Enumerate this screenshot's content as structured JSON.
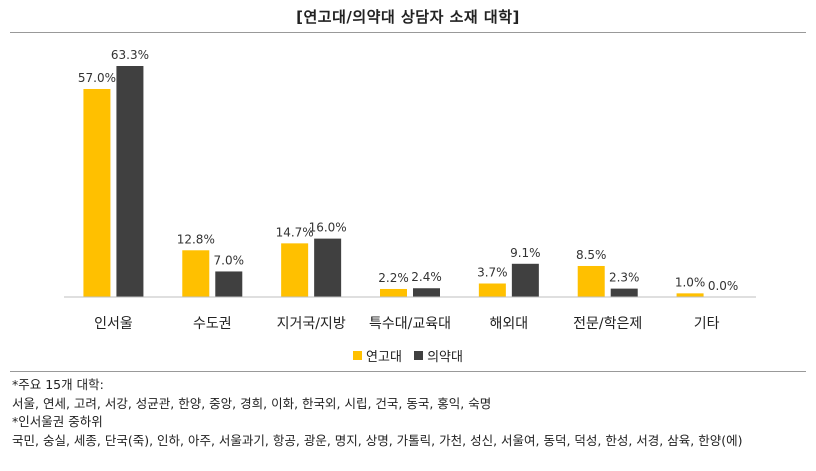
{
  "chart_data": {
    "type": "bar",
    "title": "[연고대/의약대 상담자 소재 대학]",
    "categories": [
      "인서울",
      "수도권",
      "지거국/지방",
      "특수대/교육대",
      "해외대",
      "전문/학은제",
      "기타"
    ],
    "series": [
      {
        "name": "연고대",
        "values": [
          57.0,
          12.8,
          14.7,
          2.2,
          3.7,
          8.5,
          1.0
        ],
        "labels": [
          "57.0%",
          "12.8%",
          "14.7%",
          "2.2%",
          "3.7%",
          "8.5%",
          "1.0%"
        ]
      },
      {
        "name": "의약대",
        "values": [
          63.3,
          7.0,
          16.0,
          2.4,
          9.1,
          2.3,
          0.0
        ],
        "labels": [
          "63.3%",
          "7.0%",
          "16.0%",
          "2.4%",
          "9.1%",
          "2.3%",
          "0.0%"
        ]
      }
    ],
    "colors": [
      "#FFC000",
      "#404040"
    ],
    "ylim": [
      0,
      63.3
    ],
    "legend_position": "bottom",
    "grid": false
  },
  "notes": [
    "*주요 15개 대학:",
    "서울, 연세, 고려, 서강, 성균관, 한양, 중앙, 경희, 이화, 한국외, 시립, 건국, 동국, 홍익, 숙명",
    "*인서울권 중하위",
    "국민, 숭실, 세종, 단국(죽), 인하, 아주, 서울과기, 항공, 광운, 명지, 상명, 가톨릭, 가천, 성신, 서울여, 동덕, 덕성, 한성, 서경, 삼육, 한양(에)"
  ]
}
